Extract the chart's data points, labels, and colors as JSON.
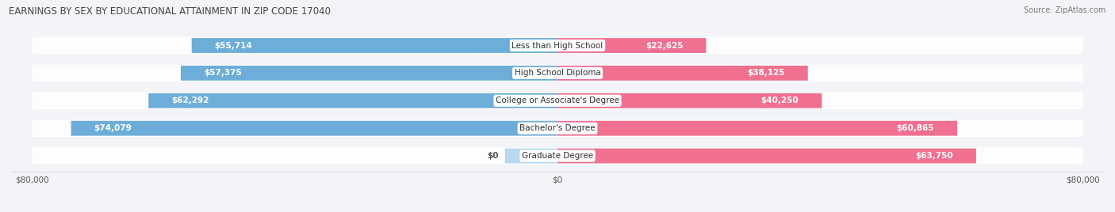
{
  "title": "EARNINGS BY SEX BY EDUCATIONAL ATTAINMENT IN ZIP CODE 17040",
  "source": "Source: ZipAtlas.com",
  "categories": [
    "Less than High School",
    "High School Diploma",
    "College or Associate's Degree",
    "Bachelor's Degree",
    "Graduate Degree"
  ],
  "male_values": [
    55714,
    57375,
    62292,
    74079,
    0
  ],
  "female_values": [
    22625,
    38125,
    40250,
    60865,
    63750
  ],
  "male_labels": [
    "$55,714",
    "$57,375",
    "$62,292",
    "$74,079",
    "$0"
  ],
  "female_labels": [
    "$22,625",
    "$38,125",
    "$40,250",
    "$60,865",
    "$63,750"
  ],
  "male_color": "#6daed9",
  "female_color": "#f07090",
  "male_color_grad": "#b8d8ee",
  "axis_max": 80000,
  "background_color": "#f2f4f8",
  "title_fontsize": 8.5,
  "label_fontsize": 7.5,
  "source_fontsize": 7.0
}
